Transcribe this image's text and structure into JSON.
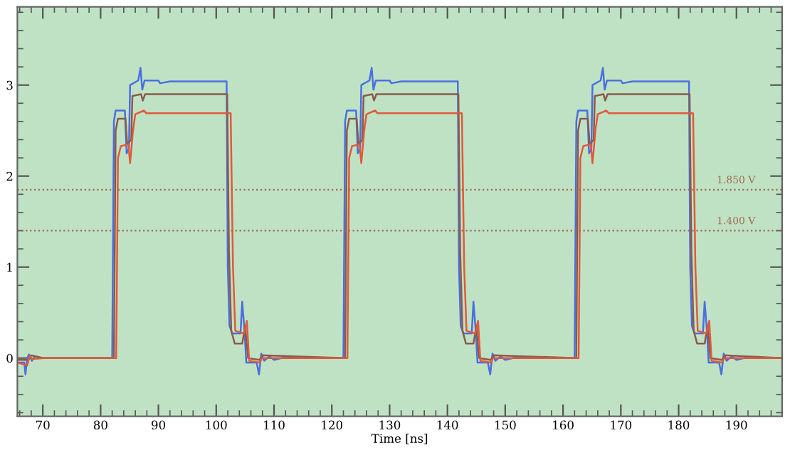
{
  "chart_data": {
    "type": "line",
    "xlabel": "Time [ns]",
    "xlim": [
      65.6,
      197.9
    ],
    "ylim": [
      -0.64,
      3.86
    ],
    "xticks": [
      70,
      80,
      90,
      100,
      110,
      120,
      130,
      140,
      150,
      160,
      170,
      180,
      190
    ],
    "yticks": [
      0,
      1,
      2,
      3
    ],
    "grid": false,
    "marker": "none",
    "line_style": "solid",
    "ref_lines": [
      {
        "axis": "y",
        "value": 1.85,
        "label": "1.850 V",
        "color": "#9a6a50",
        "line_style": "dotted"
      },
      {
        "axis": "y",
        "value": 1.4,
        "label": "1.400 V",
        "color": "#9a6a50",
        "line_style": "dotted"
      }
    ],
    "series": [
      {
        "color": "#4a6fe0",
        "x": [
          65.6,
          66.8,
          67.0,
          67.3,
          67.6,
          68.1,
          68.6,
          70,
          82.0,
          82.3,
          82.6,
          84.2,
          84.5,
          84.9,
          85.1,
          86.5,
          86.9,
          87.2,
          87.6,
          90,
          90.3,
          92,
          95,
          101.8,
          102.0,
          102.3,
          102.8,
          104.2,
          104.5,
          104.9,
          105.2,
          107,
          107.4,
          107.8,
          108.3,
          109.2,
          110,
          112,
          115,
          122.0,
          122.3,
          122.6,
          124.2,
          124.5,
          124.9,
          125.1,
          126.5,
          126.9,
          127.2,
          127.6,
          130,
          130.3,
          132,
          135,
          141.8,
          142.0,
          142.3,
          142.8,
          144.2,
          144.5,
          144.9,
          145.2,
          147,
          147.4,
          147.8,
          148.3,
          149.2,
          150,
          152,
          155,
          162.0,
          162.3,
          162.6,
          164.2,
          164.5,
          164.9,
          165.1,
          166.5,
          166.9,
          167.2,
          167.6,
          170,
          170.3,
          172,
          175,
          181.8,
          182.0,
          182.3,
          182.8,
          184.2,
          184.5,
          184.9,
          185.2,
          187,
          187.4,
          187.8,
          188.3,
          189.2,
          190,
          192,
          195,
          197.9
        ],
        "values": [
          -0.05,
          -0.05,
          -0.18,
          0.0,
          0.04,
          -0.03,
          0.02,
          0,
          0,
          2.6,
          2.72,
          2.72,
          2.25,
          2.3,
          3.0,
          3.05,
          3.19,
          2.95,
          3.05,
          3.05,
          3.02,
          3.04,
          3.04,
          3.04,
          1.0,
          0.35,
          0.27,
          0.27,
          0.62,
          0.3,
          -0.05,
          -0.05,
          -0.18,
          0.05,
          -0.03,
          0.02,
          -0.02,
          0.01,
          0,
          0,
          2.6,
          2.72,
          2.72,
          2.25,
          2.3,
          3.0,
          3.05,
          3.19,
          2.95,
          3.05,
          3.05,
          3.02,
          3.04,
          3.04,
          3.04,
          1.0,
          0.35,
          0.27,
          0.27,
          0.62,
          0.3,
          -0.05,
          -0.05,
          -0.18,
          0.05,
          -0.03,
          0.02,
          -0.02,
          0.01,
          0,
          0,
          2.6,
          2.72,
          2.72,
          2.25,
          2.3,
          3.0,
          3.05,
          3.19,
          2.95,
          3.05,
          3.05,
          3.02,
          3.04,
          3.04,
          3.04,
          1.0,
          0.35,
          0.27,
          0.27,
          0.62,
          0.3,
          -0.05,
          -0.05,
          -0.18,
          0.05,
          -0.03,
          0.02,
          -0.02,
          0.01,
          0,
          0
        ]
      },
      {
        "color": "#8b5a4a",
        "x": [
          65.6,
          67.5,
          68,
          70,
          82.3,
          82.6,
          83,
          84.3,
          84.6,
          85.3,
          85.5,
          87,
          87.3,
          87.7,
          101.9,
          102.2,
          102.6,
          103.2,
          104.5,
          105.0,
          105.5,
          107.5,
          108,
          122.3,
          122.6,
          123,
          124.3,
          124.6,
          125.3,
          125.5,
          127,
          127.3,
          127.7,
          141.9,
          142.2,
          142.6,
          143.2,
          144.5,
          145.0,
          145.5,
          147.5,
          148,
          162.3,
          162.6,
          163,
          164.3,
          164.6,
          165.3,
          165.5,
          167,
          167.3,
          167.7,
          181.9,
          182.2,
          182.6,
          183.2,
          184.5,
          185.0,
          185.5,
          187.5,
          188,
          197.9
        ],
        "values": [
          -0.02,
          -0.02,
          0.03,
          0,
          0,
          2.5,
          2.63,
          2.63,
          2.35,
          2.4,
          2.88,
          2.9,
          2.83,
          2.9,
          2.9,
          1.2,
          0.3,
          0.16,
          0.16,
          0.35,
          0.0,
          -0.02,
          0.03,
          0,
          2.5,
          2.63,
          2.63,
          2.35,
          2.4,
          2.88,
          2.9,
          2.83,
          2.9,
          2.9,
          1.2,
          0.3,
          0.16,
          0.16,
          0.35,
          0.0,
          -0.02,
          0.03,
          0,
          2.5,
          2.63,
          2.63,
          2.35,
          2.4,
          2.88,
          2.9,
          2.83,
          2.9,
          2.9,
          1.2,
          0.3,
          0.16,
          0.16,
          0.35,
          0.0,
          -0.02,
          0.03,
          0
        ]
      },
      {
        "color": "#e05a3a",
        "x": [
          65.6,
          67.3,
          67.7,
          68.2,
          70,
          82.7,
          83.0,
          83.5,
          84.8,
          85.1,
          85.6,
          86,
          87.5,
          87.9,
          102.5,
          102.9,
          103.3,
          104.8,
          105.3,
          105.7,
          107.5,
          107.9,
          122.7,
          123.0,
          123.5,
          124.8,
          125.1,
          125.6,
          126,
          127.5,
          127.9,
          142.5,
          142.9,
          143.3,
          144.8,
          145.3,
          145.7,
          147.5,
          147.9,
          162.7,
          163.0,
          163.5,
          164.8,
          165.1,
          165.6,
          166,
          167.5,
          167.9,
          182.5,
          182.9,
          183.3,
          184.8,
          185.3,
          185.7,
          187.5,
          187.9,
          197.9
        ],
        "values": [
          -0.05,
          -0.08,
          0.02,
          -0.01,
          0,
          0,
          2.2,
          2.33,
          2.35,
          2.14,
          2.5,
          2.68,
          2.72,
          2.69,
          2.69,
          1.0,
          0.3,
          0.27,
          0.41,
          -0.03,
          -0.05,
          0.0,
          0,
          2.2,
          2.33,
          2.35,
          2.14,
          2.5,
          2.68,
          2.72,
          2.69,
          2.69,
          1.0,
          0.3,
          0.27,
          0.41,
          -0.03,
          -0.05,
          0.0,
          0,
          2.2,
          2.33,
          2.35,
          2.14,
          2.5,
          2.68,
          2.72,
          2.69,
          2.69,
          1.0,
          0.3,
          0.27,
          0.41,
          -0.03,
          -0.05,
          0.0,
          0
        ]
      }
    ]
  }
}
